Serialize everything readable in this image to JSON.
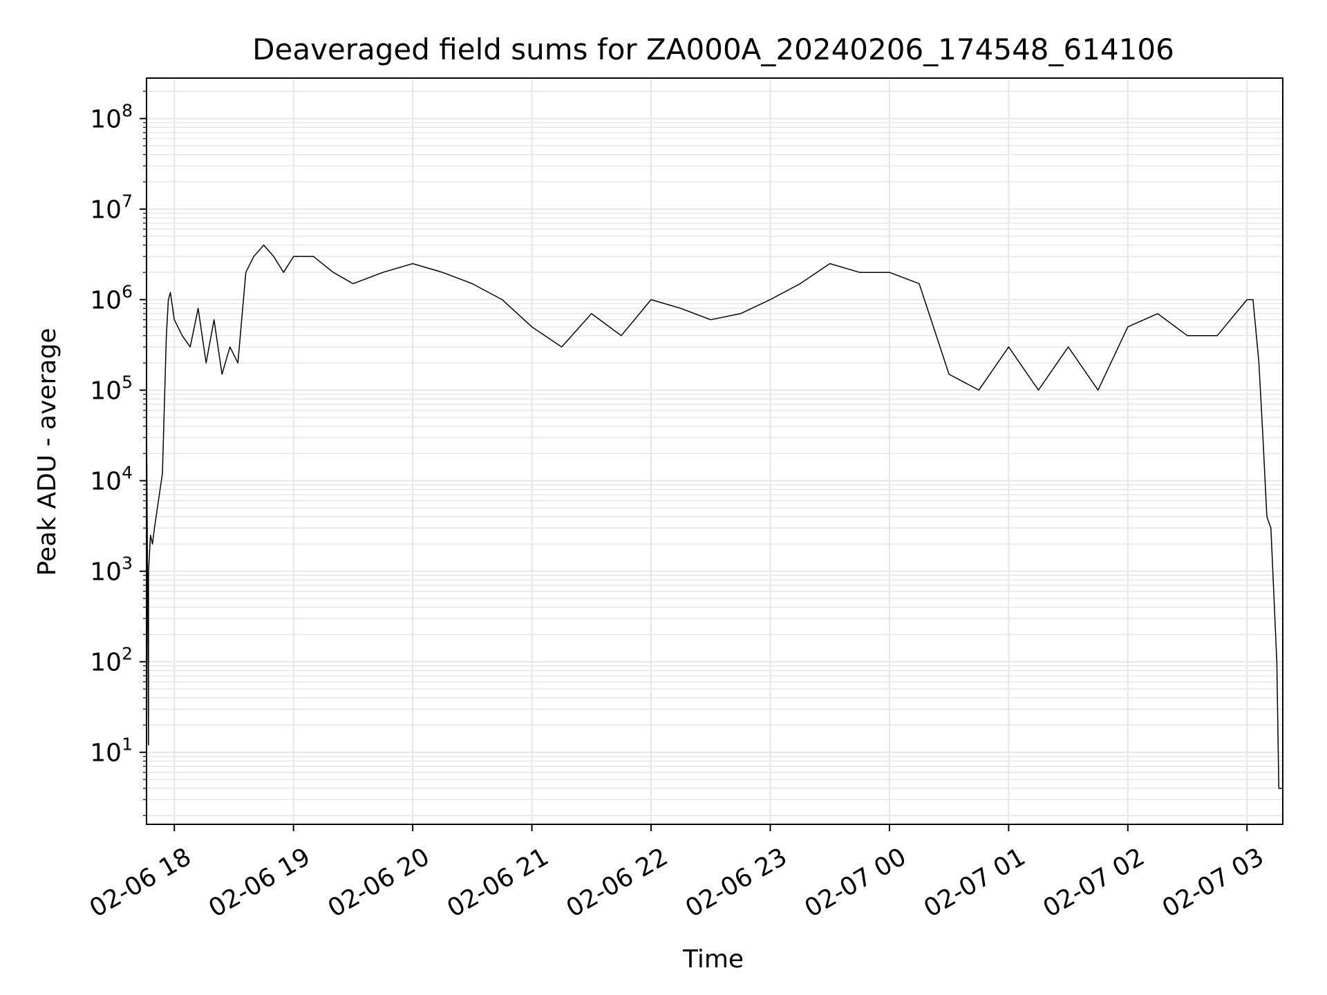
{
  "chart_data": {
    "type": "line",
    "title": "Deaveraged field sums for ZA000A_20240206_174548_614106",
    "xlabel": "Time",
    "ylabel": "Peak ADU - average",
    "y_scale": "log",
    "ylim": [
      1.6,
      280000000
    ],
    "xlim": [
      "2024-02-06 17:46",
      "2024-02-07 03:18"
    ],
    "grid": true,
    "legend": "none",
    "colors": {
      "line": "#000000",
      "grid": "#e6e6e6",
      "frame": "#000000"
    },
    "x_ticks": [
      {
        "time": "2024-02-06 18:00",
        "label": "02-06 18"
      },
      {
        "time": "2024-02-06 19:00",
        "label": "02-06 19"
      },
      {
        "time": "2024-02-06 20:00",
        "label": "02-06 20"
      },
      {
        "time": "2024-02-06 21:00",
        "label": "02-06 21"
      },
      {
        "time": "2024-02-06 22:00",
        "label": "02-06 22"
      },
      {
        "time": "2024-02-06 23:00",
        "label": "02-06 23"
      },
      {
        "time": "2024-02-07 00:00",
        "label": "02-07 00"
      },
      {
        "time": "2024-02-07 01:00",
        "label": "02-07 01"
      },
      {
        "time": "2024-02-07 02:00",
        "label": "02-07 02"
      },
      {
        "time": "2024-02-07 03:00",
        "label": "02-07 03"
      }
    ],
    "y_ticks": [
      {
        "value": 10,
        "base": "10",
        "exp": "1"
      },
      {
        "value": 100,
        "base": "10",
        "exp": "2"
      },
      {
        "value": 1000,
        "base": "10",
        "exp": "3"
      },
      {
        "value": 10000,
        "base": "10",
        "exp": "4"
      },
      {
        "value": 100000,
        "base": "10",
        "exp": "5"
      },
      {
        "value": 1000000,
        "base": "10",
        "exp": "6"
      },
      {
        "value": 10000000,
        "base": "10",
        "exp": "7"
      },
      {
        "value": 100000000,
        "base": "10",
        "exp": "8"
      }
    ],
    "series": [
      {
        "x": [
          "2024-02-06 17:46",
          "2024-02-06 17:47",
          "2024-02-06 17:47",
          "2024-02-06 17:48",
          "2024-02-06 17:49",
          "2024-02-06 17:50",
          "2024-02-06 17:52",
          "2024-02-06 17:54",
          "2024-02-06 17:56",
          "2024-02-06 17:57",
          "2024-02-06 17:58",
          "2024-02-06 18:00",
          "2024-02-06 18:04",
          "2024-02-06 18:08",
          "2024-02-06 18:12",
          "2024-02-06 18:16",
          "2024-02-06 18:20",
          "2024-02-06 18:24",
          "2024-02-06 18:28",
          "2024-02-06 18:32",
          "2024-02-06 18:36",
          "2024-02-06 18:40",
          "2024-02-06 18:45",
          "2024-02-06 18:50",
          "2024-02-06 18:55",
          "2024-02-06 19:00",
          "2024-02-06 19:10",
          "2024-02-06 19:20",
          "2024-02-06 19:30",
          "2024-02-06 19:45",
          "2024-02-06 20:00",
          "2024-02-06 20:15",
          "2024-02-06 20:30",
          "2024-02-06 20:45",
          "2024-02-06 21:00",
          "2024-02-06 21:15",
          "2024-02-06 21:30",
          "2024-02-06 21:45",
          "2024-02-06 22:00",
          "2024-02-06 22:15",
          "2024-02-06 22:30",
          "2024-02-06 22:45",
          "2024-02-06 23:00",
          "2024-02-06 23:15",
          "2024-02-06 23:30",
          "2024-02-06 23:45",
          "2024-02-07 00:00",
          "2024-02-07 00:15",
          "2024-02-07 00:30",
          "2024-02-07 00:45",
          "2024-02-07 01:00",
          "2024-02-07 01:15",
          "2024-02-07 01:30",
          "2024-02-07 01:45",
          "2024-02-07 02:00",
          "2024-02-07 02:15",
          "2024-02-07 02:30",
          "2024-02-07 02:45",
          "2024-02-07 03:00",
          "2024-02-07 03:03",
          "2024-02-07 03:06",
          "2024-02-07 03:08",
          "2024-02-07 03:10",
          "2024-02-07 03:12",
          "2024-02-07 03:13",
          "2024-02-07 03:15",
          "2024-02-07 03:16",
          "2024-02-07 03:18"
        ],
        "y": [
          60000,
          12,
          1000,
          2500,
          2000,
          3000,
          6000,
          12000,
          400000,
          1000000,
          1200000,
          600000,
          400000,
          300000,
          800000,
          200000,
          600000,
          150000,
          300000,
          200000,
          2000000,
          3000000,
          4000000,
          3000000,
          2000000,
          3000000,
          3000000,
          2000000,
          1500000,
          2000000,
          2500000,
          2000000,
          1500000,
          1000000,
          500000,
          300000,
          700000,
          400000,
          1000000,
          800000,
          600000,
          700000,
          1000000,
          1500000,
          2500000,
          2000000,
          2000000,
          1500000,
          150000,
          100000,
          300000,
          100000,
          300000,
          100000,
          500000,
          700000,
          400000,
          400000,
          1000000,
          1000000,
          200000,
          30000,
          4000,
          3000,
          1000,
          100,
          4,
          4
        ]
      }
    ]
  }
}
